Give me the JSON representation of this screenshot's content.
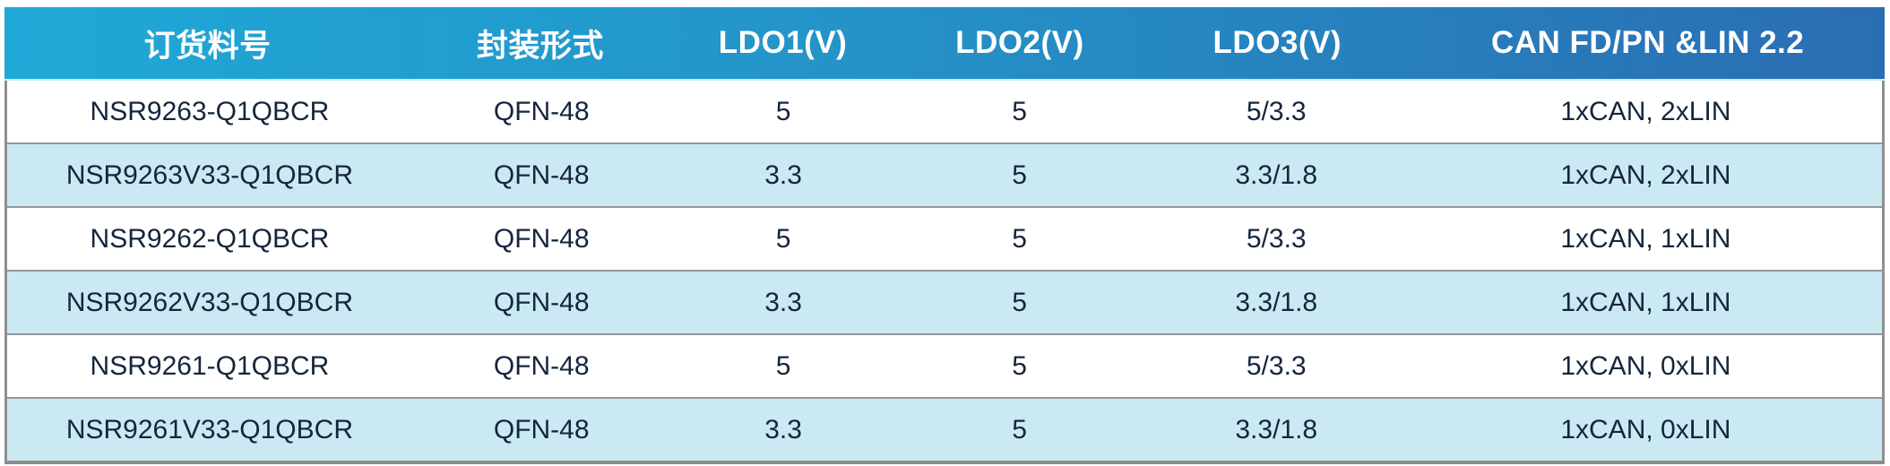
{
  "table": {
    "columns": [
      "订货料号",
      "封装形式",
      "LDO1(V)",
      "LDO2(V)",
      "LDO3(V)",
      "CAN FD/PN &LIN 2.2"
    ],
    "rows": [
      [
        "NSR9263-Q1QBCR",
        "QFN-48",
        "5",
        "5",
        "5/3.3",
        "1xCAN, 2xLIN"
      ],
      [
        "NSR9263V33-Q1QBCR",
        "QFN-48",
        "3.3",
        "5",
        "3.3/1.8",
        "1xCAN, 2xLIN"
      ],
      [
        "NSR9262-Q1QBCR",
        "QFN-48",
        "5",
        "5",
        "5/3.3",
        "1xCAN, 1xLIN"
      ],
      [
        "NSR9262V33-Q1QBCR",
        "QFN-48",
        "3.3",
        "5",
        "3.3/1.8",
        "1xCAN, 1xLIN"
      ],
      [
        "NSR9261-Q1QBCR",
        "QFN-48",
        "5",
        "5",
        "5/3.3",
        "1xCAN, 0xLIN"
      ],
      [
        "NSR9261V33-Q1QBCR",
        "QFN-48",
        "3.3",
        "5",
        "3.3/1.8",
        "1xCAN, 0xLIN"
      ]
    ]
  },
  "colors": {
    "header_gradient_left": "#1fa9d7",
    "header_gradient_right": "#2a6db3",
    "header_text": "#ffffff",
    "row_alt_background": "#cbe9f3",
    "body_text": "#15253d",
    "border_gray": "#8f8f8f"
  }
}
